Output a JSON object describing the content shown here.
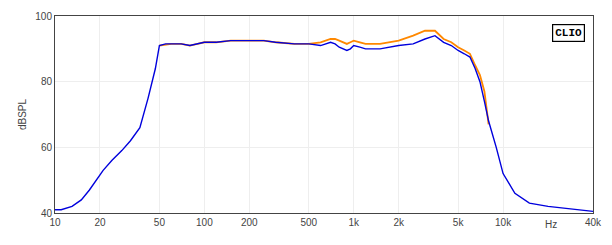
{
  "chart_data": {
    "type": "line",
    "title": "CLIO",
    "ylabel": "dBSPL",
    "log": "x",
    "grid": true,
    "xlim": [
      10,
      40000
    ],
    "ylim": [
      40,
      100
    ],
    "xticks": [
      10,
      20,
      50,
      100,
      200,
      500,
      {
        "value": 1000,
        "label": "1k"
      },
      {
        "value": 2000,
        "label": "2k"
      },
      {
        "value": 5000,
        "label": "5k"
      },
      {
        "value": 10000,
        "label": "10k"
      },
      {
        "value": 40000,
        "label": "40k"
      }
    ],
    "yticks": [
      40,
      60,
      80,
      100
    ],
    "annotations": [
      {
        "text": "Hz",
        "x": 21000,
        "y": 40
      }
    ],
    "series": [
      {
        "color": "#ff8800",
        "x": [
          50,
          60,
          70,
          80,
          90,
          100,
          120,
          150,
          200,
          250,
          300,
          400,
          500,
          600,
          700,
          750,
          800,
          850,
          900,
          950,
          1000,
          1100,
          1200,
          1500,
          2000,
          2500,
          3000,
          3500,
          4000,
          4500,
          5000,
          5500,
          6000,
          6500,
          7000,
          7500,
          8000
        ],
        "values": [
          91,
          91.5,
          91.5,
          91,
          91.5,
          92,
          92,
          92.5,
          92.5,
          92.5,
          92,
          91.5,
          91.5,
          92,
          93,
          93,
          92.5,
          92,
          91.5,
          92,
          92.5,
          92,
          91.5,
          91.5,
          92.5,
          94,
          95.5,
          95.5,
          93,
          92,
          90.5,
          89.5,
          88.5,
          85,
          82,
          77,
          67
        ]
      },
      {
        "color": "#0000dd",
        "x": [
          10,
          11,
          13,
          15,
          17,
          19,
          21,
          24,
          28,
          32,
          37,
          42,
          47,
          50,
          55,
          60,
          70,
          80,
          90,
          100,
          120,
          150,
          200,
          250,
          300,
          400,
          500,
          600,
          700,
          750,
          800,
          850,
          900,
          950,
          1000,
          1100,
          1200,
          1500,
          2000,
          2500,
          3000,
          3500,
          4000,
          4500,
          5000,
          5500,
          6000,
          6500,
          7000,
          7500,
          8000,
          9000,
          10000,
          12000,
          15000,
          20000,
          30000,
          40000
        ],
        "values": [
          41,
          41,
          42,
          44,
          47,
          50,
          53,
          56,
          59,
          62,
          66,
          75,
          84,
          91,
          91.5,
          91.5,
          91.5,
          91,
          91.5,
          92,
          92,
          92.5,
          92.5,
          92.5,
          92,
          91.5,
          91.5,
          91,
          92,
          91.5,
          90.5,
          90,
          89.5,
          90,
          91,
          90.5,
          90,
          90,
          91,
          91.5,
          93,
          94,
          92,
          91,
          89.5,
          88.5,
          87.5,
          84,
          80,
          74,
          68,
          60,
          52,
          46,
          43,
          42,
          41,
          40.5
        ]
      }
    ]
  }
}
